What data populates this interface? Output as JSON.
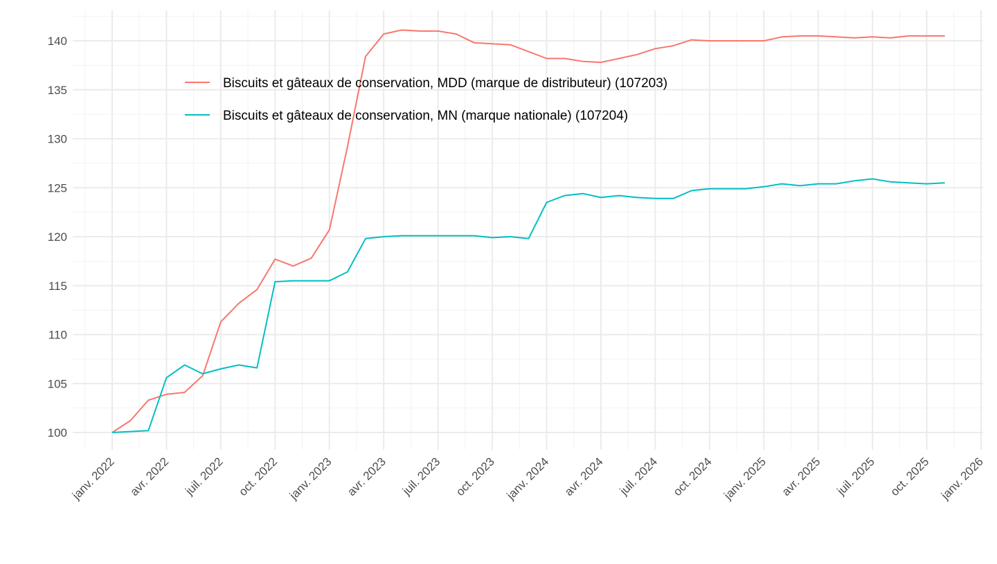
{
  "chart_data": {
    "type": "line",
    "title": "",
    "xlabel": "",
    "ylabel": "",
    "ylim": [
      98.3,
      142.4
    ],
    "yticks": [
      100,
      105,
      110,
      115,
      120,
      125,
      130,
      135,
      140
    ],
    "x_start": "2022-01",
    "xtick_labels": [
      "janv. 2022",
      "avr. 2022",
      "juil. 2022",
      "oct. 2022",
      "janv. 2023",
      "avr. 2023",
      "juil. 2023",
      "oct. 2023",
      "janv. 2024",
      "avr. 2024",
      "juil. 2024",
      "oct. 2024",
      "janv. 2025",
      "avr. 2025",
      "juil. 2025",
      "oct. 2025",
      "janv. 2026"
    ],
    "grid": true,
    "legend_position": "top-left inside",
    "series": [
      {
        "name": "Biscuits et gâteaux de conservation, MDD (marque de distributeur) (107203)",
        "color": "#F8766D",
        "values": [
          100,
          101.2,
          103.3,
          103.9,
          104.1,
          105.8,
          111.3,
          113.2,
          114.6,
          117.7,
          117.0,
          117.8,
          120.7,
          129.2,
          138.4,
          140.7,
          141.1,
          141.0,
          141.0,
          140.7,
          139.8,
          139.7,
          139.6,
          138.9,
          138.2,
          138.2,
          137.9,
          137.8,
          138.2,
          138.6,
          139.2,
          139.5,
          140.1,
          140.0,
          140.0,
          140.0,
          140.0,
          140.4,
          140.5,
          140.5,
          140.4,
          140.3,
          140.4,
          140.3,
          140.5,
          140.5,
          140.5
        ]
      },
      {
        "name": "Biscuits et gâteaux de conservation, MN (marque nationale) (107204)",
        "color": "#00BFC4",
        "values": [
          100,
          100.1,
          100.2,
          105.6,
          106.9,
          106.0,
          106.5,
          106.9,
          106.6,
          115.4,
          115.5,
          115.5,
          115.5,
          116.4,
          119.8,
          120.0,
          120.1,
          120.1,
          120.1,
          120.1,
          120.1,
          119.9,
          120.0,
          119.8,
          123.5,
          124.2,
          124.4,
          124.0,
          124.2,
          124.0,
          123.9,
          123.9,
          124.7,
          124.9,
          124.9,
          124.9,
          125.1,
          125.4,
          125.2,
          125.4,
          125.4,
          125.7,
          125.9,
          125.6,
          125.5,
          125.4,
          125.5
        ]
      }
    ]
  }
}
